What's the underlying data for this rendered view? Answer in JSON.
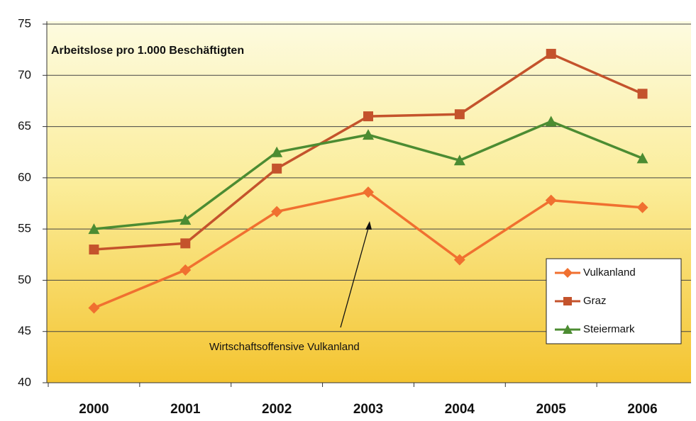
{
  "chart_data": {
    "type": "line",
    "title": "Arbeitslose pro 1.000 Beschäftigten",
    "annotation": "Wirtschaftsoffensive Vulkanland",
    "categories": [
      "2000",
      "2001",
      "2002",
      "2003",
      "2004",
      "2005",
      "2006"
    ],
    "series": [
      {
        "name": "Vulkanland",
        "color": "#f07030",
        "marker": "diamond",
        "values": [
          47.3,
          51.0,
          56.7,
          58.6,
          52.0,
          57.8,
          57.1
        ]
      },
      {
        "name": "Graz",
        "color": "#c4532c",
        "marker": "square",
        "values": [
          53.0,
          53.6,
          60.9,
          66.0,
          66.2,
          72.1,
          68.2
        ]
      },
      {
        "name": "Steiermark",
        "color": "#4c8c32",
        "marker": "triangle",
        "values": [
          55.0,
          55.9,
          62.5,
          64.2,
          61.7,
          65.5,
          61.9
        ]
      }
    ],
    "ylim": [
      40,
      75
    ],
    "yticks": [
      40,
      45,
      50,
      55,
      60,
      65,
      70,
      75
    ],
    "grid": true,
    "legend": "lower right"
  }
}
